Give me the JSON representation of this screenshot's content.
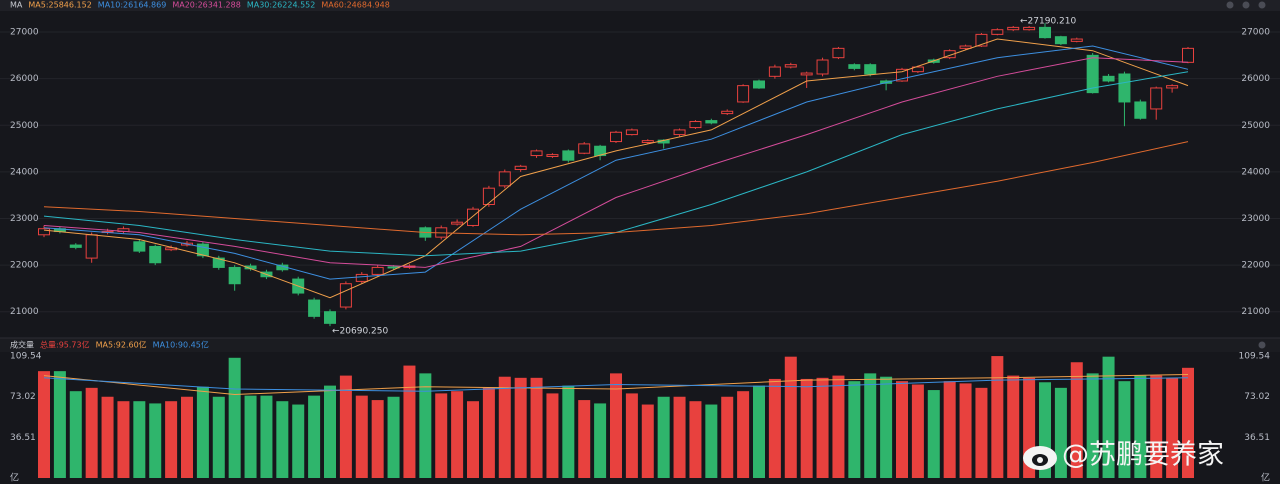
{
  "chart_data": [
    {
      "type": "candlestick",
      "title": "MA",
      "open": [
        22650,
        22780,
        22430,
        22150,
        22700,
        22720,
        22500,
        22400,
        22330,
        22430,
        22450,
        22150,
        21950,
        21980,
        21850,
        22000,
        21700,
        21250,
        21000,
        21100,
        21650,
        21800,
        21960,
        21950,
        22800,
        22600,
        22880,
        22850,
        23300,
        23700,
        24050,
        24350,
        24330,
        24450,
        24400,
        24550,
        24650,
        24800,
        24630,
        24680,
        24800,
        24950,
        25100,
        25250,
        25500,
        25950,
        26050,
        26250,
        26080,
        26100,
        26450,
        26300,
        26300,
        25950,
        25950,
        26150,
        26400,
        26450,
        26650,
        26700,
        26950,
        27050,
        27050,
        27100,
        26900,
        26800,
        26500,
        26050,
        26100,
        25500,
        25350,
        25800,
        26350
      ],
      "close": [
        22780,
        22720,
        22380,
        22650,
        22720,
        22780,
        22300,
        22050,
        22370,
        22470,
        22200,
        21950,
        21600,
        21920,
        21750,
        21900,
        21400,
        20900,
        20750,
        21600,
        21800,
        21950,
        21940,
        21980,
        22600,
        22800,
        22920,
        23200,
        23650,
        24000,
        24120,
        24450,
        24370,
        24250,
        24600,
        24350,
        24850,
        24900,
        24670,
        24620,
        24900,
        25080,
        25050,
        25300,
        25850,
        25800,
        26250,
        26300,
        26120,
        26400,
        26650,
        26220,
        26100,
        25900,
        26200,
        26250,
        26350,
        26600,
        26700,
        26950,
        27050,
        27100,
        27100,
        26880,
        26750,
        26850,
        25700,
        25950,
        25500,
        25150,
        25800,
        25850,
        26650
      ],
      "low": [
        22600,
        22680,
        22340,
        22050,
        22660,
        22680,
        22260,
        22000,
        22300,
        22400,
        22150,
        21900,
        21450,
        21880,
        21700,
        21860,
        21350,
        20850,
        20690.25,
        21050,
        21600,
        21750,
        21900,
        21920,
        22520,
        22550,
        22850,
        22820,
        23250,
        23650,
        24000,
        24300,
        24300,
        24200,
        24380,
        24250,
        24620,
        24780,
        24600,
        24500,
        24760,
        24920,
        25020,
        25220,
        25480,
        25780,
        26000,
        26220,
        25800,
        26050,
        26420,
        26180,
        26050,
        25750,
        25930,
        26120,
        26320,
        26420,
        26620,
        26680,
        26930,
        27020,
        27030,
        26860,
        26720,
        26780,
        25680,
        25920,
        24980,
        25120,
        25120,
        25700,
        26330
      ],
      "high": [
        22850,
        22820,
        22470,
        22700,
        22780,
        22830,
        22560,
        22440,
        22420,
        22520,
        22500,
        22200,
        22000,
        22030,
        21900,
        22050,
        21750,
        21300,
        21050,
        21650,
        21850,
        22000,
        22000,
        22020,
        22830,
        22850,
        22980,
        23250,
        23700,
        24050,
        24150,
        24480,
        24400,
        24480,
        24640,
        24580,
        24880,
        24930,
        24700,
        24700,
        24930,
        25110,
        25140,
        25340,
        25880,
        25980,
        26300,
        26340,
        26150,
        26450,
        26680,
        26330,
        26330,
        25980,
        26230,
        26280,
        26430,
        26630,
        26730,
        26980,
        27080,
        27130,
        27130,
        27190.21,
        26920,
        26880,
        26550,
        26100,
        26150,
        25550,
        25830,
        25880,
        26680
      ],
      "up_color": "#e8413e",
      "down_color": "#2fb56c",
      "ylim": [
        20500,
        27430
      ],
      "yticks": [
        21000,
        22000,
        23000,
        24000,
        25000,
        26000,
        27000
      ],
      "grid": true,
      "series": [
        {
          "name": "MA5:25846.152",
          "color": "#f0a04b",
          "x": [
            0,
            6,
            12,
            18,
            24,
            30,
            36,
            42,
            48,
            54,
            60,
            66,
            72
          ],
          "values": [
            22750,
            22550,
            22050,
            21300,
            22200,
            23900,
            24450,
            24900,
            25950,
            26150,
            26850,
            26600,
            25850
          ]
        },
        {
          "name": "MA10:26164.869",
          "color": "#3d8fe0",
          "x": [
            0,
            6,
            12,
            18,
            24,
            30,
            36,
            42,
            48,
            54,
            60,
            66,
            72
          ],
          "values": [
            22800,
            22650,
            22250,
            21700,
            21850,
            23200,
            24250,
            24700,
            25500,
            26000,
            26450,
            26700,
            26200
          ]
        },
        {
          "name": "MA20:26341.288",
          "color": "#d44c9a",
          "x": [
            0,
            6,
            12,
            18,
            24,
            30,
            36,
            42,
            48,
            54,
            60,
            66,
            72
          ],
          "values": [
            22850,
            22700,
            22400,
            22050,
            21950,
            22400,
            23450,
            24150,
            24800,
            25500,
            26050,
            26450,
            26350
          ]
        },
        {
          "name": "MA30:26224.552",
          "color": "#2bb6c4",
          "x": [
            0,
            6,
            12,
            18,
            24,
            30,
            36,
            42,
            48,
            54,
            60,
            66,
            72
          ],
          "values": [
            23050,
            22850,
            22550,
            22300,
            22200,
            22300,
            22700,
            23300,
            24000,
            24800,
            25350,
            25800,
            26150
          ]
        },
        {
          "name": "MA60:24684.948",
          "color": "#e06a2e",
          "x": [
            0,
            6,
            12,
            18,
            24,
            30,
            36,
            42,
            48,
            54,
            60,
            66,
            72
          ],
          "values": [
            23250,
            23150,
            23000,
            22850,
            22700,
            22650,
            22700,
            22850,
            23100,
            23450,
            23800,
            24200,
            24650
          ]
        }
      ],
      "annotations": [
        {
          "x": 63,
          "value": 27190.21,
          "label": "←27190.210"
        },
        {
          "x": 18,
          "value": 20690.25,
          "label": "←20690.250"
        }
      ]
    },
    {
      "type": "bar",
      "title": "成交量",
      "subtitle": "总量:95.73亿",
      "subtitle_color": "#e8413e",
      "values": [
        96,
        96,
        78,
        81,
        73,
        69,
        69,
        67,
        69,
        73,
        82,
        73,
        108,
        74,
        74,
        69,
        66,
        74,
        83,
        92,
        74,
        70,
        73,
        101,
        94,
        76,
        78,
        69,
        81,
        91,
        90,
        90,
        76,
        83,
        70,
        67,
        94,
        76,
        66,
        73,
        73,
        69,
        66,
        73,
        78,
        83,
        89,
        109,
        89,
        90,
        92,
        87,
        94,
        91,
        87,
        84,
        79,
        87,
        85,
        81,
        109.54,
        92,
        90,
        86,
        81,
        104,
        94,
        109,
        87,
        92,
        92,
        90,
        99
      ],
      "ylim": [
        0,
        115
      ],
      "yticks": [
        {
          "value": 0,
          "label": "亿"
        },
        36.51,
        73.02,
        109.54
      ],
      "series": [
        {
          "name": "MA5:92.60亿",
          "color": "#f0a04b",
          "x": [
            0,
            12,
            24,
            36,
            48,
            60,
            72
          ],
          "values": [
            92,
            75,
            82,
            80,
            88,
            90,
            93
          ]
        },
        {
          "name": "MA10:90.45亿",
          "color": "#3d8fe0",
          "x": [
            0,
            12,
            24,
            36,
            48,
            60,
            72
          ],
          "values": [
            90,
            80,
            78,
            84,
            82,
            88,
            90
          ]
        }
      ]
    }
  ],
  "watermark": "@苏鹏要养家"
}
